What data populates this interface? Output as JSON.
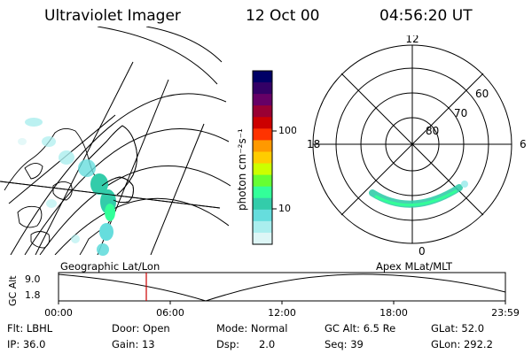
{
  "header": {
    "instrument": "Ultraviolet Imager",
    "date": "12 Oct 00",
    "time": "04:56:20 UT"
  },
  "colorbar": {
    "ticks": [
      "100",
      "10"
    ],
    "unit_label": "photon cm⁻²s⁻¹",
    "colors": [
      "#000066",
      "#330066",
      "#660066",
      "#990033",
      "#cc0000",
      "#ff3300",
      "#ff9900",
      "#ffcc00",
      "#ccff00",
      "#66ff33",
      "#33ff99",
      "#33ccaa",
      "#66dddd",
      "#aaeeee",
      "#ddf6f6"
    ]
  },
  "polar_plot": {
    "mlt_labels": {
      "top": "12",
      "left": "18",
      "right": "6",
      "bottom": "0"
    },
    "lat_labels": [
      "60",
      "70",
      "80"
    ]
  },
  "timeline": {
    "left_label": "Geographic Lat/Lon",
    "right_label": "Apex MLat/MLT",
    "y_axis_title": "GC Alt",
    "y_ticks": [
      "9.0",
      "1.8"
    ],
    "x_ticks": [
      "00:00",
      "06:00",
      "12:00",
      "18:00",
      "23:59"
    ],
    "marker_color": "#cc0000"
  },
  "info": {
    "filter": "Flt: LBHL",
    "door": "Door: Open",
    "mode": "Mode: Normal",
    "gc_alt": "GC Alt: 6.5 Re",
    "glat": "GLat: 52.0",
    "ip": "IP: 36.0",
    "gain": "Gain: 13",
    "dsp": "Dsp:      2.0",
    "seq": "Seq: 39",
    "glon": "GLon: 292.2"
  }
}
